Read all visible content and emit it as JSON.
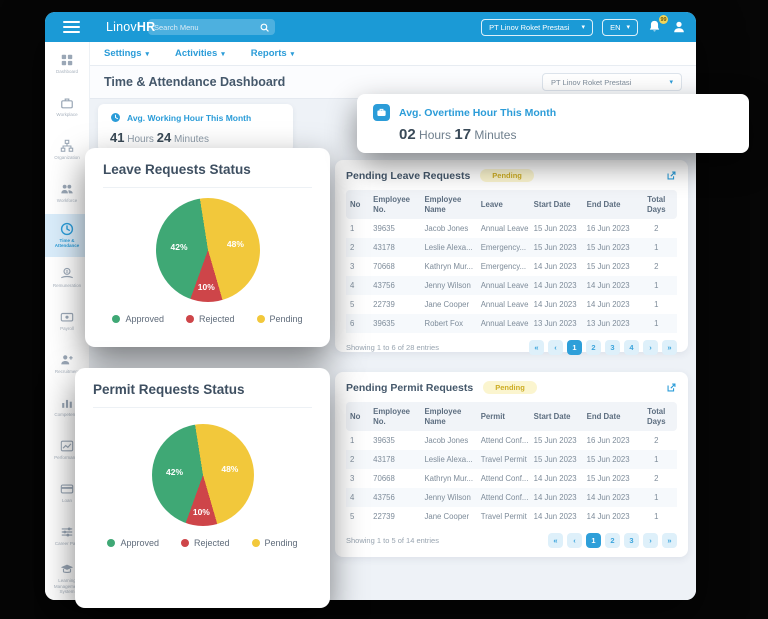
{
  "topbar": {
    "logo_light": "Linov",
    "logo_bold": "HR",
    "search_placeholder": "Search Menu",
    "company_select": "PT Linov Roket Prestasi",
    "language_select": "EN",
    "notification_count": "99"
  },
  "menubar": {
    "items": [
      "Settings",
      "Activities",
      "Reports"
    ]
  },
  "sidebar": {
    "items": [
      {
        "label": "Dashboard",
        "icon": "dashboard-icon",
        "active": false
      },
      {
        "label": "Workplace",
        "icon": "briefcase-icon",
        "active": false
      },
      {
        "label": "Organization",
        "icon": "org-chart-icon",
        "active": false
      },
      {
        "label": "Workforce",
        "icon": "people-icon",
        "active": false
      },
      {
        "label": "Time & Attendance",
        "icon": "clock-icon",
        "active": true
      },
      {
        "label": "Remuneration",
        "icon": "payment-hand-icon",
        "active": false
      },
      {
        "label": "Payroll",
        "icon": "payroll-card-icon",
        "active": false
      },
      {
        "label": "Recruitment",
        "icon": "person-add-icon",
        "active": false
      },
      {
        "label": "Competency",
        "icon": "bar-chart-icon",
        "active": false
      },
      {
        "label": "Performance",
        "icon": "line-chart-icon",
        "active": false
      },
      {
        "label": "Loan",
        "icon": "credit-card-icon",
        "active": false
      },
      {
        "label": "Career Path",
        "icon": "sliders-icon",
        "active": false
      },
      {
        "label": "Learning Management System",
        "icon": "graduation-cap-icon",
        "active": false
      }
    ]
  },
  "page": {
    "title": "Time & Attendance Dashboard",
    "company_filter": "PT Linov Roket Prestasi"
  },
  "stats": {
    "working": {
      "label": "Avg. Working Hour This Month",
      "hours": "41",
      "hours_unit": "Hours",
      "minutes": "24",
      "minutes_unit": "Minutes"
    },
    "overtime": {
      "label": "Avg. Overtime Hour This Month",
      "hours": "02",
      "hours_unit": "Hours",
      "minutes": "17",
      "minutes_unit": "Minutes"
    }
  },
  "chart_data": [
    {
      "type": "pie",
      "title": "Leave Requests Status",
      "labels": [
        "Approved",
        "Rejected",
        "Pending"
      ],
      "values": [
        42,
        10,
        48
      ],
      "value_labels": [
        "42%",
        "10%",
        "48%"
      ],
      "colors": [
        "#3FA875",
        "#CE4549",
        "#F2C83B"
      ],
      "legend_position": "bottom"
    },
    {
      "type": "pie",
      "title": "Permit Requests Status",
      "labels": [
        "Approved",
        "Rejected",
        "Pending"
      ],
      "values": [
        42,
        10,
        48
      ],
      "value_labels": [
        "42%",
        "10%",
        "48%"
      ],
      "colors": [
        "#3FA875",
        "#CE4549",
        "#F2C83B"
      ],
      "legend_position": "bottom"
    }
  ],
  "leave_requests": {
    "title": "Pending Leave Requests",
    "badge": "Pending",
    "columns": [
      "No",
      "Employee No.",
      "Employee Name",
      "Leave",
      "Start Date",
      "End Date",
      "Total Days"
    ],
    "rows": [
      [
        "1",
        "39635",
        "Jacob Jones",
        "Annual Leave",
        "15 Jun 2023",
        "16 Jun 2023",
        "2"
      ],
      [
        "2",
        "43178",
        "Leslie Alexa...",
        "Emergency...",
        "15 Jun 2023",
        "15 Jun 2023",
        "1"
      ],
      [
        "3",
        "70668",
        "Kathryn Mur...",
        "Emergency...",
        "14 Jun 2023",
        "15 Jun 2023",
        "2"
      ],
      [
        "4",
        "43756",
        "Jenny Wilson",
        "Annual Leave",
        "14 Jun 2023",
        "14 Jun 2023",
        "1"
      ],
      [
        "5",
        "22739",
        "Jane Cooper",
        "Annual Leave",
        "14 Jun 2023",
        "14 Jun 2023",
        "1"
      ],
      [
        "6",
        "39635",
        "Robert Fox",
        "Annual Leave",
        "13 Jun 2023",
        "13 Jun 2023",
        "1"
      ]
    ],
    "footer": "Showing 1 to 6 of 28 entries",
    "pagination": [
      "«",
      "‹",
      "1",
      "2",
      "3",
      "4",
      "›",
      "»"
    ],
    "active_page": "1"
  },
  "permit_requests": {
    "title": "Pending Permit Requests",
    "badge": "Pending",
    "columns": [
      "No",
      "Employee No.",
      "Employee Name",
      "Permit",
      "Start Date",
      "End Date",
      "Total Days"
    ],
    "rows": [
      [
        "1",
        "39635",
        "Jacob Jones",
        "Attend Conf...",
        "15 Jun 2023",
        "16 Jun 2023",
        "2"
      ],
      [
        "2",
        "43178",
        "Leslie Alexa...",
        "Travel Permit",
        "15 Jun 2023",
        "15 Jun 2023",
        "1"
      ],
      [
        "3",
        "70668",
        "Kathryn Mur...",
        "Attend Conf...",
        "14 Jun 2023",
        "15 Jun 2023",
        "2"
      ],
      [
        "4",
        "43756",
        "Jenny Wilson",
        "Attend Conf...",
        "14 Jun 2023",
        "14 Jun 2023",
        "1"
      ],
      [
        "5",
        "22739",
        "Jane Cooper",
        "Travel Permit",
        "14 Jun 2023",
        "14 Jun 2023",
        "1"
      ]
    ],
    "footer": "Showing 1 to 5 of 14 entries",
    "pagination": [
      "«",
      "‹",
      "1",
      "2",
      "3",
      "›",
      "»"
    ],
    "active_page": "1"
  }
}
